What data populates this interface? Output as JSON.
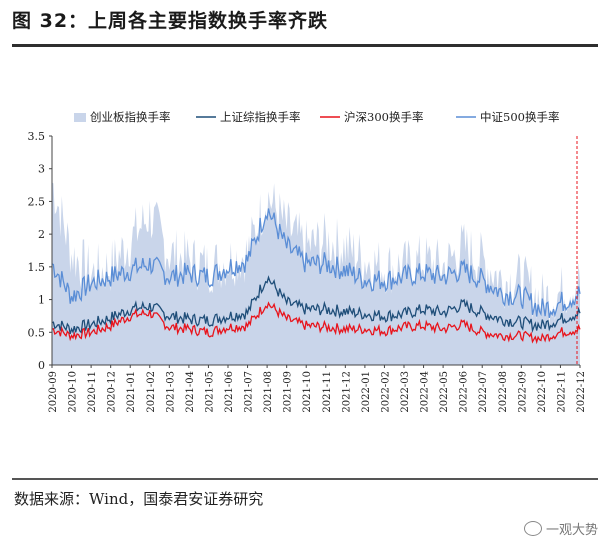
{
  "title": "图 32：上周各主要指数换手率齐跌",
  "source": "数据来源：Wind，国泰君安证券研究",
  "watermark": "一观大势",
  "watermark_icon": "wechat-icon",
  "chart_data": {
    "type": "area",
    "ylim": [
      0,
      3.5
    ],
    "yticks": [
      "0",
      "0.5",
      "1",
      "1.5",
      "2",
      "2.5",
      "3",
      "3.5"
    ],
    "xticks": [
      "2020-09",
      "2020-10",
      "2020-11",
      "2020-12",
      "2021-01",
      "2021-02",
      "2021-03",
      "2021-04",
      "2021-05",
      "2021-06",
      "2021-07",
      "2021-08",
      "2021-09",
      "2021-10",
      "2021-11",
      "2021-12",
      "2022-01",
      "2022-02",
      "2022-03",
      "2022-04",
      "2022-05",
      "2022-06",
      "2022-07",
      "2022-08",
      "2022-09",
      "2022-10",
      "2022-11",
      "2022-12"
    ],
    "legend_position": "top",
    "grid": false,
    "annotation": "red dashed vertical line at latest date",
    "series": [
      {
        "name": "创业板指换手率",
        "style": "area",
        "color": "#c9d5ea",
        "values": [
          2.8,
          1.7,
          1.4,
          1.5,
          1.9,
          2.3,
          1.7,
          1.6,
          1.5,
          1.6,
          1.7,
          2.6,
          2.1,
          1.8,
          1.9,
          1.8,
          1.6,
          1.5,
          1.5,
          1.6,
          1.5,
          1.8,
          1.6,
          1.3,
          1.3,
          1.0,
          1.1,
          1.3
        ]
      },
      {
        "name": "上证综指换手率",
        "style": "line",
        "color": "#1f4e79",
        "values": [
          0.65,
          0.55,
          0.62,
          0.72,
          0.85,
          0.9,
          0.75,
          0.7,
          0.68,
          0.75,
          0.8,
          1.35,
          0.95,
          0.85,
          0.85,
          0.82,
          0.78,
          0.75,
          0.78,
          0.85,
          0.8,
          0.92,
          0.8,
          0.7,
          0.65,
          0.6,
          0.7,
          0.8
        ]
      },
      {
        "name": "沪深300换手率",
        "style": "line",
        "color": "#e8141c",
        "values": [
          0.55,
          0.45,
          0.5,
          0.6,
          0.75,
          0.8,
          0.58,
          0.55,
          0.5,
          0.58,
          0.6,
          0.95,
          0.7,
          0.6,
          0.58,
          0.55,
          0.55,
          0.52,
          0.58,
          0.6,
          0.55,
          0.62,
          0.5,
          0.45,
          0.45,
          0.4,
          0.5,
          0.55
        ]
      },
      {
        "name": "中证500换手率",
        "style": "line",
        "color": "#5b8ed6",
        "values": [
          1.55,
          1.05,
          1.25,
          1.35,
          1.45,
          1.55,
          1.35,
          1.4,
          1.35,
          1.5,
          1.6,
          2.4,
          1.8,
          1.55,
          1.55,
          1.45,
          1.3,
          1.3,
          1.35,
          1.4,
          1.35,
          1.45,
          1.3,
          1.1,
          1.05,
          0.85,
          0.95,
          1.1
        ]
      }
    ]
  }
}
